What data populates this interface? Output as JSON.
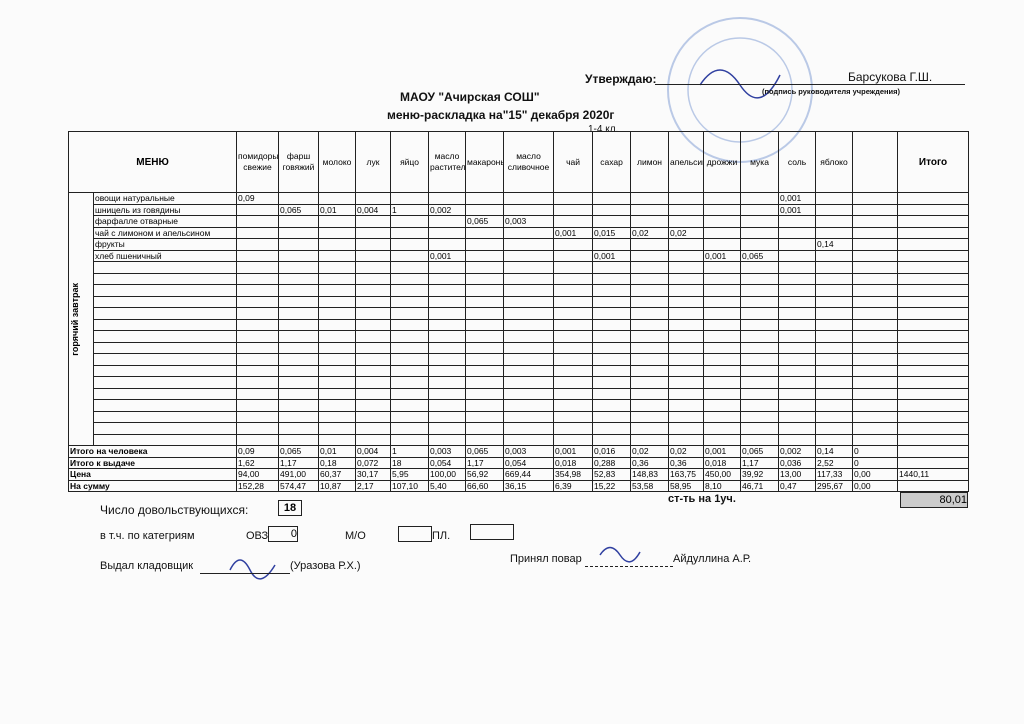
{
  "header": {
    "approve": "Утверждаю:",
    "approver": "Барсукова Г.Ш.",
    "approver_note": "(подпись руководителя учреждения)",
    "title": "МАОУ \"Ачирская СОШ\"",
    "subtitle": "меню-раскладка на\"15\" декабря 2020г",
    "grade": "1-4 кл."
  },
  "table": {
    "menu_header": "МЕНЮ",
    "total_header": "Итого",
    "group_label": "горячий завтрак",
    "columns": [
      "помидоры свежие",
      "фарш говяжий",
      "молоко",
      "лук",
      "яйцо",
      "масло растительное",
      "макароны",
      "масло сливочное",
      "чай",
      "сахар",
      "лимон",
      "апельсин",
      "дрожжи",
      "мука",
      "соль",
      "яблоко",
      null
    ],
    "dishes": [
      {
        "name": "овощи натуральные",
        "values": [
          "0,09",
          null,
          null,
          null,
          null,
          null,
          null,
          null,
          null,
          null,
          null,
          null,
          null,
          null,
          "0,001",
          null,
          null
        ]
      },
      {
        "name": "шницель из говядины",
        "values": [
          null,
          "0,065",
          "0,01",
          "0,004",
          "1",
          "0,002",
          null,
          null,
          null,
          null,
          null,
          null,
          null,
          null,
          "0,001",
          null,
          null
        ]
      },
      {
        "name": "фарфалле отварные",
        "values": [
          null,
          null,
          null,
          null,
          null,
          null,
          "0,065",
          "0,003",
          null,
          null,
          null,
          null,
          null,
          null,
          null,
          null,
          null
        ]
      },
      {
        "name": "чай с лимоном и апельсином",
        "values": [
          null,
          null,
          null,
          null,
          null,
          null,
          null,
          null,
          "0,001",
          "0,015",
          "0,02",
          "0,02",
          null,
          null,
          null,
          null,
          null
        ]
      },
      {
        "name": "фрукты",
        "values": [
          null,
          null,
          null,
          null,
          null,
          null,
          null,
          null,
          null,
          null,
          null,
          null,
          null,
          null,
          null,
          "0,14",
          null
        ]
      },
      {
        "name": "хлеб пшеничный",
        "values": [
          null,
          null,
          null,
          null,
          null,
          "0,001",
          null,
          null,
          null,
          "0,001",
          null,
          null,
          "0,001",
          "0,065",
          null,
          null,
          null
        ]
      }
    ],
    "totals": [
      {
        "label": "Итого на человека",
        "values": [
          "0,09",
          "0,065",
          "0,01",
          "0,004",
          "1",
          "0,003",
          "0,065",
          "0,003",
          "0,001",
          "0,016",
          "0,02",
          "0,02",
          "0,001",
          "0,065",
          "0,002",
          "0,14",
          "0"
        ]
      },
      {
        "label": "Итого к выдаче",
        "values": [
          "1,62",
          "1,17",
          "0,18",
          "0,072",
          "18",
          "0,054",
          "1,17",
          "0,054",
          "0,018",
          "0,288",
          "0,36",
          "0,36",
          "0,018",
          "1,17",
          "0,036",
          "2,52",
          "0"
        ]
      },
      {
        "label": "Цена",
        "values": [
          "94,00",
          "491,00",
          "60,37",
          "30,17",
          "5,95",
          "100,00",
          "56,92",
          "669,44",
          "354,98",
          "52,83",
          "148,83",
          "163,75",
          "450,00",
          "39,92",
          "13,00",
          "117,33",
          "0,00"
        ],
        "total": "1440,11"
      },
      {
        "label": "На сумму",
        "values": [
          "152,28",
          "574,47",
          "10,87",
          "2,17",
          "107,10",
          "5,40",
          "66,60",
          "36,15",
          "6,39",
          "15,22",
          "53,58",
          "58,95",
          "8,10",
          "46,71",
          "0,47",
          "295,67",
          "0,00"
        ]
      }
    ]
  },
  "footer": {
    "eaters_label": "Число довольствующихся:",
    "eaters": "18",
    "cost_label": "ст-ть на 1уч.",
    "cost": "80,01",
    "categories_label": "в т.ч. по категриям",
    "ovz_label": "ОВЗ",
    "ovz": "0",
    "mo_label": "М/О",
    "pl_label": "ПЛ.",
    "issued_label": "Выдал кладовщик",
    "issued_name": "(Уразова Р.Х.)",
    "received_label": "Принял повар",
    "received_name": "Айдуллина А.Р."
  }
}
